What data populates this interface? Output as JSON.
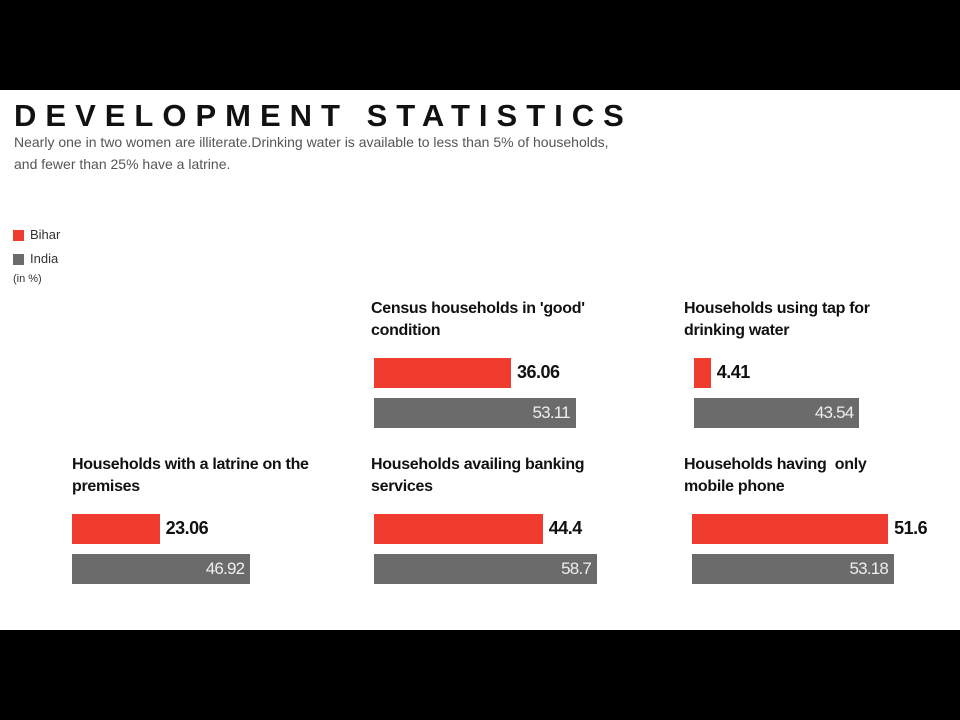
{
  "title": "DEVELOPMENT STATISTICS",
  "subtitle": [
    "Nearly one in two women are illiterate.Drinking water is available to less than 5% of households,",
    "and fewer than 25% have a latrine."
  ],
  "unit": "(in %)",
  "chart_data": [
    {
      "type": "bar",
      "title": [
        "Census households in 'good'",
        "condition"
      ],
      "series": [
        {
          "name": "Bihar",
          "color": "#f03c2e",
          "values": [
            36.06
          ]
        },
        {
          "name": "India",
          "color": "#6b6b6b",
          "values": [
            53.11
          ]
        }
      ]
    },
    {
      "type": "bar",
      "title": [
        "Households using tap for",
        "drinking water"
      ],
      "series": [
        {
          "name": "Bihar",
          "color": "#f03c2e",
          "values": [
            4.41
          ]
        },
        {
          "name": "India",
          "color": "#6b6b6b",
          "values": [
            43.54
          ]
        }
      ]
    },
    {
      "type": "bar",
      "title": [
        "Households with a latrine on the",
        "premises"
      ],
      "series": [
        {
          "name": "Bihar",
          "color": "#f03c2e",
          "values": [
            23.06
          ]
        },
        {
          "name": "India",
          "color": "#6b6b6b",
          "values": [
            46.92
          ]
        }
      ]
    },
    {
      "type": "bar",
      "title": [
        "Households availing banking",
        "services"
      ],
      "series": [
        {
          "name": "Bihar",
          "color": "#f03c2e",
          "values": [
            44.4
          ]
        },
        {
          "name": "India",
          "color": "#6b6b6b",
          "values": [
            58.7
          ]
        }
      ]
    },
    {
      "type": "bar",
      "title": [
        "Households having  only",
        "mobile phone"
      ],
      "series": [
        {
          "name": "Bihar",
          "color": "#f03c2e",
          "values": [
            51.6
          ]
        },
        {
          "name": "India",
          "color": "#6b6b6b",
          "values": [
            53.18
          ]
        }
      ]
    }
  ]
}
